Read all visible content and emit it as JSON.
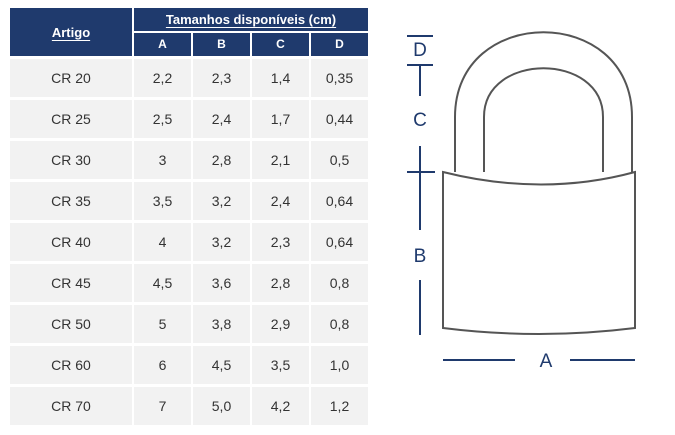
{
  "table": {
    "artigo_header": "Artigo",
    "group_header": "Tamanhos disponíveis (cm)",
    "columns": [
      "A",
      "B",
      "C",
      "D"
    ],
    "rows": [
      {
        "artigo": "CR 20",
        "a": "2,2",
        "b": "2,3",
        "c": "1,4",
        "d": "0,35"
      },
      {
        "artigo": "CR 25",
        "a": "2,5",
        "b": "2,4",
        "c": "1,7",
        "d": "0,44"
      },
      {
        "artigo": "CR 30",
        "a": "3",
        "b": "2,8",
        "c": "2,1",
        "d": "0,5"
      },
      {
        "artigo": "CR 35",
        "a": "3,5",
        "b": "3,2",
        "c": "2,4",
        "d": "0,64"
      },
      {
        "artigo": "CR 40",
        "a": "4",
        "b": "3,2",
        "c": "2,3",
        "d": "0,64"
      },
      {
        "artigo": "CR 45",
        "a": "4,5",
        "b": "3,6",
        "c": "2,8",
        "d": "0,8"
      },
      {
        "artigo": "CR 50",
        "a": "5",
        "b": "3,8",
        "c": "2,9",
        "d": "0,8"
      },
      {
        "artigo": "CR 60",
        "a": "6",
        "b": "4,5",
        "c": "3,5",
        "d": "1,0"
      },
      {
        "artigo": "CR 70",
        "a": "7",
        "b": "5,0",
        "c": "4,2",
        "d": "1,2"
      }
    ]
  },
  "diagram": {
    "labels": {
      "a": "A",
      "b": "B",
      "c": "C",
      "d": "D"
    },
    "colors": {
      "outline": "#555555",
      "dimension": "#1f3a6d",
      "header": "#1f3a6d",
      "cell": "#f2f2f2"
    }
  }
}
